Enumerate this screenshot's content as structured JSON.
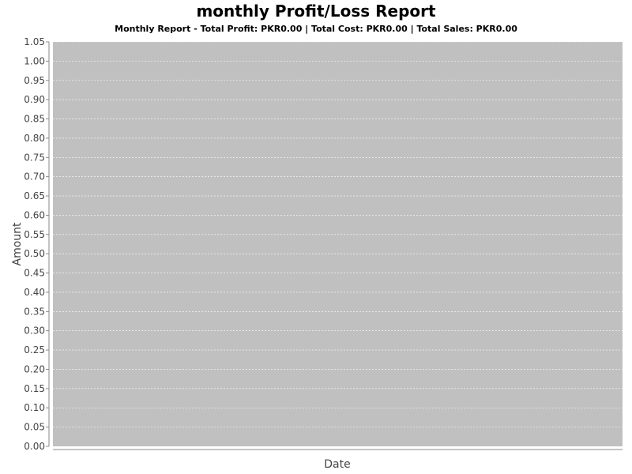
{
  "chart_data": {
    "type": "line",
    "title": "monthly Profit/Loss Report",
    "subtitle": "Monthly Report - Total Profit: PKR0.00 | Total Cost: PKR0.00 | Total Sales: PKR0.00",
    "xlabel": "Date",
    "ylabel": "Amount",
    "ylim": [
      0,
      1.05
    ],
    "y_ticks": [
      "0.00",
      "0.05",
      "0.10",
      "0.15",
      "0.20",
      "0.25",
      "0.30",
      "0.35",
      "0.40",
      "0.45",
      "0.50",
      "0.55",
      "0.60",
      "0.65",
      "0.70",
      "0.75",
      "0.80",
      "0.85",
      "0.90",
      "0.95",
      "1.00",
      "1.05"
    ],
    "x_ticks": [],
    "series": [],
    "grid": true,
    "colors": {
      "plot_background": "#c0c0c0",
      "gridline": "#ffffff",
      "axis": "#888888"
    }
  }
}
